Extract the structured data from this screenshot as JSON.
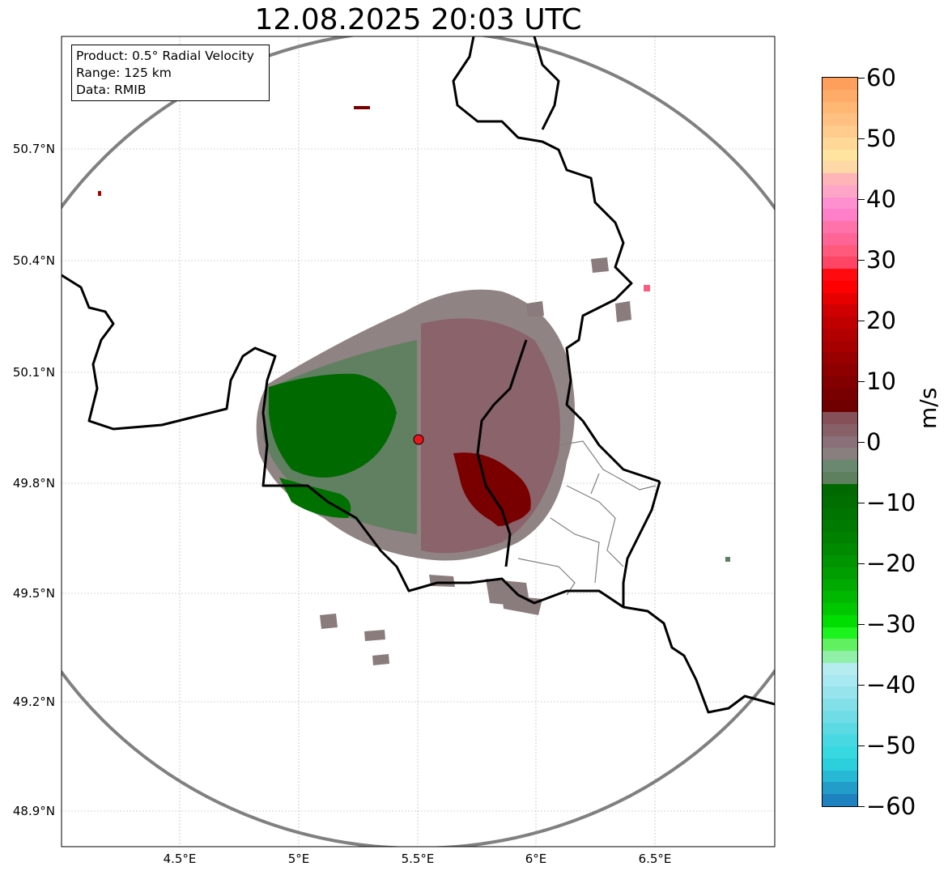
{
  "title": "12.08.2025 20:03 UTC",
  "info_box": {
    "product": "Product: 0.5° Radial Velocity",
    "range": "Range: 125 km",
    "data": "Data: RMIB"
  },
  "map": {
    "lon_range": [
      4.0,
      7.0
    ],
    "lat_range": [
      48.8,
      51.0
    ],
    "x_ticks": [
      "4.5°E",
      "5°E",
      "5.5°E",
      "6°E",
      "6.5°E"
    ],
    "y_ticks": [
      "50.7°N",
      "50.4°N",
      "50.1°N",
      "49.8°N",
      "49.5°N",
      "49.2°N",
      "48.9°N"
    ],
    "radar_site": {
      "lon": 5.505,
      "lat": 49.914,
      "color": "#e8151b"
    },
    "range_circle_color": "#808080",
    "border_color": "#000000",
    "grid": true
  },
  "colorbar": {
    "unit": "m/s",
    "ticks": [
      "60",
      "50",
      "40",
      "30",
      "20",
      "10",
      "0",
      "−10",
      "−20",
      "−30",
      "−40",
      "−50",
      "−60"
    ],
    "vmin": -60,
    "vmax": 60,
    "colors_top_to_bottom": [
      "#ff9f5c",
      "#ffab68",
      "#ffb774",
      "#ffc082",
      "#ffcc8e",
      "#ffd797",
      "#ffe49f",
      "#ffd8a8",
      "#ffb4b8",
      "#ffa6c8",
      "#ff90d0",
      "#ff7fc8",
      "#ff72aa",
      "#ff6496",
      "#ff5a7c",
      "#ff4565",
      "#ff0a0f",
      "#ff0000",
      "#e60000",
      "#d00000",
      "#c00000",
      "#b20000",
      "#a60000",
      "#980000",
      "#8e0000",
      "#820000",
      "#780000",
      "#6e0000",
      "#865058",
      "#886068",
      "#8a7078",
      "#8a7f7f",
      "#6a8870",
      "#5f805f",
      "#006a00",
      "#006e00",
      "#007400",
      "#007a00",
      "#008200",
      "#008a00",
      "#009400",
      "#009e00",
      "#00aa00",
      "#00b800",
      "#00c800",
      "#00dd00",
      "#1cf21c",
      "#60f060",
      "#90f0a8",
      "#b4ecf0",
      "#a8e8f0",
      "#98e4ec",
      "#84e0e8",
      "#70dce6",
      "#5cdae4",
      "#48d8e2",
      "#38d8e0",
      "#2cd0dc",
      "#26b8d4",
      "#229cc8",
      "#1e82c0"
    ]
  },
  "echo_legend": {
    "positive_core": "#7a0000",
    "positive_mid": "#8a5f68",
    "near_zero": "#8a7c7c",
    "negative_mid": "#5f8060",
    "negative_core": "#006a00",
    "outlier_pink": "#ff79b0",
    "outlier_green": "#22e022"
  }
}
